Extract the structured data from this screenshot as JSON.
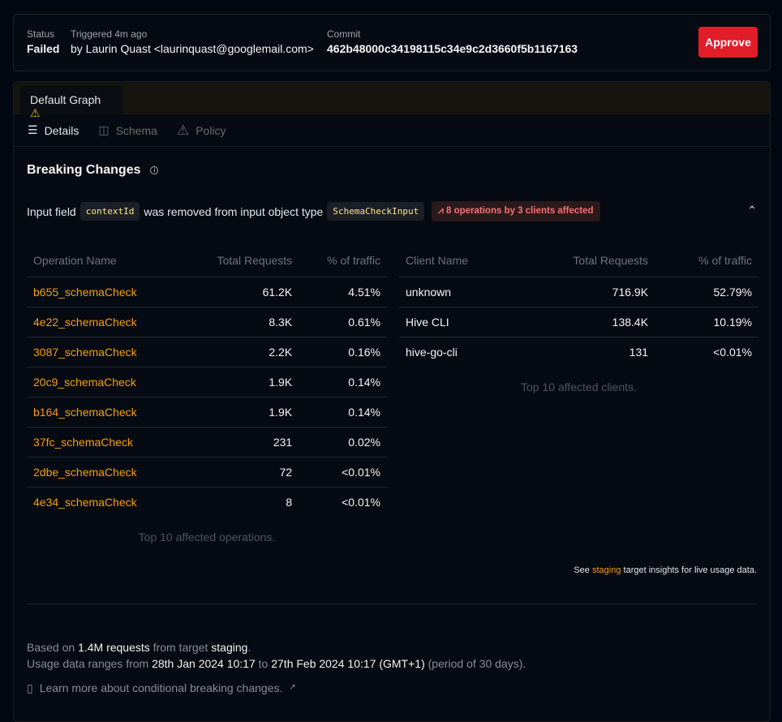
{
  "header": {
    "status_label": "Status",
    "status_value": "Failed",
    "triggered_label": "Triggered 4m ago",
    "triggered_by": "by Laurin Quast <laurinquast@googlemail.com>",
    "commit_label": "Commit",
    "commit_value": "462b48000c34198115c34e9c2d3660f5b1167163",
    "approve_label": "Approve"
  },
  "tabs": [
    {
      "label": "Default Graph",
      "icon": "warning-icon"
    }
  ],
  "subnav": [
    {
      "label": "Details",
      "icon": "list-icon"
    },
    {
      "label": "Schema",
      "icon": "columns-icon"
    },
    {
      "label": "Policy",
      "icon": "warning-icon"
    }
  ],
  "breaking": {
    "title": "Breaking Changes",
    "p1": "Input field",
    "field": "contextId",
    "p2": "was removed from input object type",
    "type": "SchemaCheckInput",
    "badge": "8 operations by 3 clients affected"
  },
  "operations": {
    "headers": [
      "Operation Name",
      "Total Requests",
      "% of traffic"
    ],
    "rows": [
      [
        "b655_schemaCheck",
        "61.2K",
        "4.51%"
      ],
      [
        "4e22_schemaCheck",
        "8.3K",
        "0.61%"
      ],
      [
        "3087_schemaCheck",
        "2.2K",
        "0.16%"
      ],
      [
        "20c9_schemaCheck",
        "1.9K",
        "0.14%"
      ],
      [
        "b164_schemaCheck",
        "1.9K",
        "0.14%"
      ],
      [
        "37fc_schemaCheck",
        "231",
        "0.02%"
      ],
      [
        "2dbe_schemaCheck",
        "72",
        "<0.01%"
      ],
      [
        "4e34_schemaCheck",
        "8",
        "<0.01%"
      ]
    ],
    "caption": "Top 10 affected operations."
  },
  "clients": {
    "headers": [
      "Client Name",
      "Total Requests",
      "% of traffic"
    ],
    "rows": [
      [
        "unknown",
        "716.9K",
        "52.79%"
      ],
      [
        "Hive CLI",
        "138.4K",
        "10.19%"
      ],
      [
        "hive-go-cli",
        "131",
        "<0.01%"
      ]
    ],
    "caption": "Top 10 affected clients."
  },
  "insight": {
    "pre": "See",
    "link": "staging",
    "post": "target insights for live usage data."
  },
  "footer": {
    "a1": "Based on",
    "a2": "1.4M requests",
    "a3": "from target",
    "a4": "staging",
    "a5": ".",
    "b1": "Usage data ranges from",
    "b2": "28th Jan 2024 10:17",
    "b3": "to",
    "b4": "27th Feb 2024 10:17 (GMT+1)",
    "b5": "(period of 30 days).",
    "learn": "Learn more about conditional breaking changes."
  },
  "colors": {
    "accent": "#f59e0b",
    "danger": "#e11d2a"
  }
}
